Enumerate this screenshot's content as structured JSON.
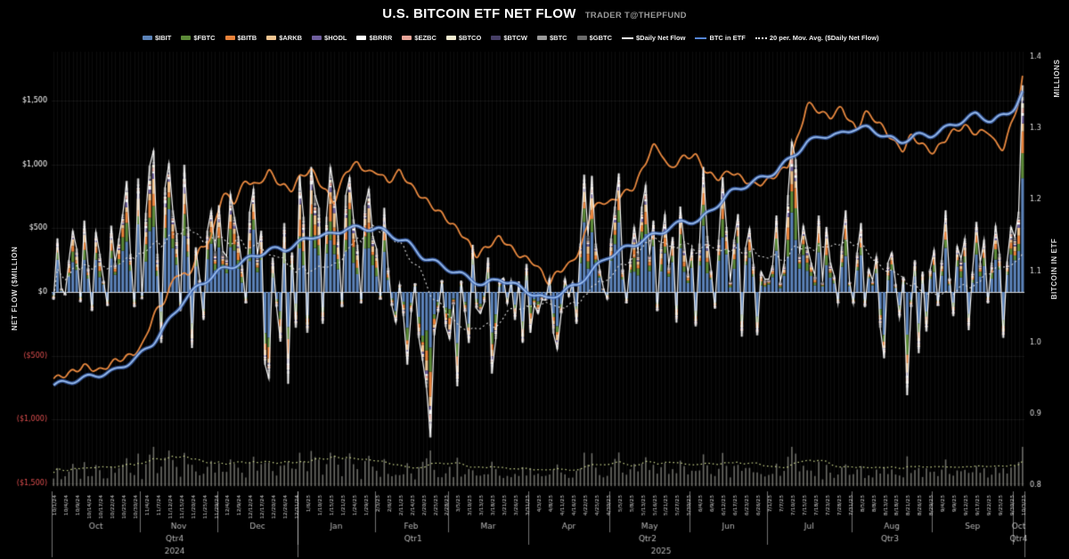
{
  "header": {
    "title": "U.S. BITCOIN ETF NET FLOW",
    "byline": "TRADER T@THEPFUND"
  },
  "axes": {
    "left_title": "NET FLOW ($MILLION",
    "right_title": "BITCOIN IN ETF",
    "right_units": "MILLIONS",
    "left_ticks": [
      {
        "label": "$1,500",
        "value": 1500,
        "color": "#ffffff"
      },
      {
        "label": "$1,000",
        "value": 1000,
        "color": "#ffffff"
      },
      {
        "label": "$500",
        "value": 500,
        "color": "#ffffff"
      },
      {
        "label": "$0",
        "value": 0,
        "color": "#ffffff"
      },
      {
        "label": "($500)",
        "value": -500,
        "color": "#e04f4f"
      },
      {
        "label": "($1,000)",
        "value": -1000,
        "color": "#e04f4f"
      },
      {
        "label": "($1,500)",
        "value": -1500,
        "color": "#e04f4f"
      }
    ],
    "right_ticks": [
      {
        "label": "1.4",
        "value": 1.4
      },
      {
        "label": "1.3",
        "value": 1.3
      },
      {
        "label": "1.2",
        "value": 1.2
      },
      {
        "label": "1.1",
        "value": 1.1
      },
      {
        "label": "1.0",
        "value": 1.0
      },
      {
        "label": "0.9",
        "value": 0.9
      },
      {
        "label": "0.8",
        "value": 0.8
      }
    ]
  },
  "chart_data": {
    "type": "bar",
    "title": "U.S. BITCOIN ETF NET FLOW",
    "xlabel": "",
    "ylabel": "NET FLOW ($MILLION",
    "left_axis_range": [
      -1500,
      1500
    ],
    "right_axis_range": [
      0.8,
      1.4
    ],
    "legend_position": "top",
    "grid": "faint",
    "tick_every": 3,
    "etfs": [
      {
        "ticker": "$IBIT",
        "color": "#5b82b8",
        "weight": 0.52
      },
      {
        "ticker": "$FBTC",
        "color": "#5c8a38",
        "weight": 0.13
      },
      {
        "ticker": "$BITB",
        "color": "#e8823a",
        "weight": 0.09
      },
      {
        "ticker": "$ARKB",
        "color": "#f0c490",
        "weight": 0.08
      },
      {
        "ticker": "$HODL",
        "color": "#6f5f9e",
        "weight": 0.03
      },
      {
        "ticker": "$BRRR",
        "color": "#ffffff",
        "weight": 0.02
      },
      {
        "ticker": "$EZBC",
        "color": "#e8a598",
        "weight": 0.02
      },
      {
        "ticker": "$BTCO",
        "color": "#f0ead0",
        "weight": 0.02
      },
      {
        "ticker": "$BTCW",
        "color": "#473f66",
        "weight": 0.01
      },
      {
        "ticker": "$BTC",
        "color": "#9a9a9a",
        "weight": 0.02
      },
      {
        "ticker": "$GBTC",
        "color": "#6a6a6a",
        "weight": 0.06
      }
    ],
    "line_legend": [
      {
        "label": "$Daily Net Flow",
        "color": "#ffffff",
        "style": "line"
      },
      {
        "label": "BTC in ETF",
        "color": "#5585d6",
        "style": "line"
      },
      {
        "label": "20 per. Mov. Avg. ($Daily Net Flow)",
        "color": "#ffffff",
        "style": "dotted"
      }
    ],
    "months": [
      {
        "label": "Oct",
        "start": 0,
        "count": 23
      },
      {
        "label": "Nov",
        "start": 23,
        "count": 20
      },
      {
        "label": "Dec",
        "start": 43,
        "count": 21
      },
      {
        "label": "Jan",
        "start": 64,
        "count": 20
      },
      {
        "label": "Feb",
        "start": 84,
        "count": 19
      },
      {
        "label": "Mar",
        "start": 103,
        "count": 21
      },
      {
        "label": "Apr",
        "start": 124,
        "count": 21
      },
      {
        "label": "May",
        "start": 145,
        "count": 21
      },
      {
        "label": "Jun",
        "start": 166,
        "count": 20
      },
      {
        "label": "Jul",
        "start": 186,
        "count": 22
      },
      {
        "label": "Aug",
        "start": 208,
        "count": 21
      },
      {
        "label": "Sep",
        "start": 229,
        "count": 21
      },
      {
        "label": "Oct",
        "start": 250,
        "count": 3
      }
    ],
    "quarters": [
      {
        "label": "Qtr4",
        "start": 0,
        "count": 64
      },
      {
        "label": "Qtr1",
        "start": 64,
        "count": 60
      },
      {
        "label": "Qtr2",
        "start": 124,
        "count": 62
      },
      {
        "label": "Qtr3",
        "start": 186,
        "count": 64
      },
      {
        "label": "Qtr4",
        "start": 250,
        "count": 3
      }
    ],
    "years": [
      {
        "label": "2024",
        "start": 0,
        "count": 64
      },
      {
        "label": "2025",
        "start": 64,
        "count": 189
      }
    ],
    "x_dates": [
      "10/1/24",
      "10/2/24",
      "10/3/24",
      "10/4/24",
      "10/7/24",
      "10/8/24",
      "10/9/24",
      "10/10/24",
      "10/11/24",
      "10/14/24",
      "10/15/24",
      "10/16/24",
      "10/17/24",
      "10/18/24",
      "10/21/24",
      "10/22/24",
      "10/23/24",
      "10/24/24",
      "10/25/24",
      "10/28/24",
      "10/29/24",
      "10/30/24",
      "10/31/24",
      "11/1/24",
      "11/4/24",
      "11/5/24",
      "11/6/24",
      "11/7/24",
      "11/8/24",
      "11/11/24",
      "11/12/24",
      "11/13/24",
      "11/14/24",
      "11/15/24",
      "11/18/24",
      "11/19/24",
      "11/20/24",
      "11/21/24",
      "11/22/24",
      "11/25/24",
      "11/26/24",
      "11/27/24",
      "11/29/24",
      "12/2/24",
      "12/3/24",
      "12/4/24",
      "12/5/24",
      "12/6/24",
      "12/9/24",
      "12/10/24",
      "12/11/24",
      "12/12/24",
      "12/13/24",
      "12/16/24",
      "12/17/24",
      "12/18/24",
      "12/19/24",
      "12/20/24",
      "12/23/24",
      "12/24/24",
      "12/26/24",
      "12/27/24",
      "12/30/24",
      "12/31/24",
      "1/2/25",
      "1/3/25",
      "1/6/25",
      "1/7/25",
      "1/8/25",
      "1/10/25",
      "1/13/25",
      "1/14/25",
      "1/15/25",
      "1/16/25",
      "1/17/25",
      "1/21/25",
      "1/22/25",
      "1/23/25",
      "1/24/25",
      "1/27/25",
      "1/28/25",
      "1/29/25",
      "1/30/25",
      "1/31/25",
      "2/3/25",
      "2/4/25",
      "2/5/25",
      "2/6/25",
      "2/7/25",
      "2/10/25",
      "2/11/25",
      "2/12/25",
      "2/13/25",
      "2/14/25",
      "2/18/25",
      "2/19/25",
      "2/20/25",
      "2/21/25",
      "2/24/25",
      "2/25/25",
      "2/26/25",
      "2/27/25",
      "2/28/25",
      "3/3/25",
      "3/4/25",
      "3/5/25",
      "3/6/25",
      "3/7/25",
      "3/10/25",
      "3/11/25",
      "3/12/25",
      "3/13/25",
      "3/14/25",
      "3/17/25",
      "3/18/25",
      "3/19/25",
      "3/20/25",
      "3/21/25",
      "3/24/25",
      "3/25/25",
      "3/26/25",
      "3/27/25",
      "3/28/25",
      "3/31/25",
      "4/1/25",
      "4/2/25",
      "4/3/25",
      "4/4/25",
      "4/7/25",
      "4/8/25",
      "4/9/25",
      "4/10/25",
      "4/11/25",
      "4/14/25",
      "4/15/25",
      "4/16/25",
      "4/17/25",
      "4/21/25",
      "4/22/25",
      "4/23/25",
      "4/24/25",
      "4/25/25",
      "4/28/25",
      "4/29/25",
      "4/30/25",
      "5/1/25",
      "5/2/25",
      "5/5/25",
      "5/6/25",
      "5/7/25",
      "5/8/25",
      "5/9/25",
      "5/12/25",
      "5/13/25",
      "5/14/25",
      "5/15/25",
      "5/16/25",
      "5/19/25",
      "5/20/25",
      "5/21/25",
      "5/22/25",
      "5/23/25",
      "5/27/25",
      "5/28/25",
      "5/29/25",
      "5/30/25",
      "6/2/25",
      "6/3/25",
      "6/4/25",
      "6/5/25",
      "6/6/25",
      "6/9/25",
      "6/10/25",
      "6/11/25",
      "6/12/25",
      "6/13/25",
      "6/16/25",
      "6/17/25",
      "6/18/25",
      "6/20/25",
      "6/23/25",
      "6/24/25",
      "6/25/25",
      "6/26/25",
      "6/27/25",
      "6/30/25",
      "7/1/25",
      "7/2/25",
      "7/3/25",
      "7/7/25",
      "7/8/25",
      "7/9/25",
      "7/10/25",
      "7/11/25",
      "7/14/25",
      "7/15/25",
      "7/16/25",
      "7/17/25",
      "7/18/25",
      "7/21/25",
      "7/22/25",
      "7/23/25",
      "7/24/25",
      "7/25/25",
      "7/28/25",
      "7/29/25",
      "7/30/25",
      "7/31/25",
      "8/1/25",
      "8/4/25",
      "8/5/25",
      "8/6/25",
      "8/7/25",
      "8/8/25",
      "8/11/25",
      "8/12/25",
      "8/13/25",
      "8/14/25",
      "8/15/25",
      "8/18/25",
      "8/19/25",
      "8/20/25",
      "8/21/25",
      "8/22/25",
      "8/25/25",
      "8/26/25",
      "8/27/25",
      "8/28/25",
      "8/29/25",
      "9/2/25",
      "9/3/25",
      "9/4/25",
      "9/5/25",
      "9/8/25",
      "9/9/25",
      "9/10/25",
      "9/11/25",
      "9/12/25",
      "9/15/25",
      "9/16/25",
      "9/17/25",
      "9/18/25",
      "9/19/25",
      "9/22/25",
      "9/23/25",
      "9/24/25",
      "9/25/25",
      "9/26/25",
      "9/29/25",
      "9/30/25",
      "10/1/25",
      "10/2/25",
      "10/3/25"
    ],
    "daily_net_flow": [
      -60,
      420,
      30,
      -20,
      250,
      480,
      340,
      -80,
      560,
      190,
      -150,
      470,
      300,
      90,
      -110,
      520,
      230,
      420,
      610,
      870,
      300,
      -120,
      890,
      -55,
      620,
      990,
      1110,
      300,
      -400,
      820,
      1010,
      640,
      450,
      -150,
      998,
      510,
      -440,
      350,
      100,
      -220,
      480,
      640,
      320,
      680,
      320,
      280,
      770,
      590,
      440,
      210,
      -90,
      630,
      810,
      290,
      480,
      -570,
      -680,
      270,
      -120,
      -390,
      540,
      -720,
      310,
      -280,
      910,
      590,
      -320,
      980,
      760,
      660,
      -250,
      590,
      980,
      800,
      450,
      -120,
      760,
      900,
      570,
      370,
      -90,
      680,
      810,
      440,
      340,
      -60,
      660,
      190,
      -110,
      -240,
      60,
      -190,
      -570,
      -160,
      70,
      -360,
      -540,
      -750,
      -1140,
      -340,
      -160,
      94,
      -275,
      -370,
      -100,
      -740,
      90,
      -160,
      -400,
      370,
      -130,
      -170,
      -84,
      270,
      -640,
      -370,
      83,
      110,
      -93,
      89,
      -220,
      84,
      -400,
      220,
      -320,
      -100,
      -170,
      -60,
      -64,
      110,
      -326,
      -450,
      -170,
      106,
      -35,
      76,
      -250,
      380,
      920,
      440,
      910,
      380,
      180,
      30,
      -56,
      420,
      670,
      930,
      180,
      -90,
      260,
      510,
      320,
      670,
      840,
      290,
      560,
      -150,
      380,
      610,
      210,
      430,
      -240,
      670,
      380,
      150,
      340,
      -270,
      380,
      980,
      440,
      170,
      -130,
      410,
      900,
      510,
      86,
      410,
      610,
      -350,
      350,
      500,
      220,
      -340,
      160,
      100,
      100,
      210,
      600,
      80,
      220,
      760,
      1180,
      1040,
      300,
      520,
      360,
      230,
      130,
      600,
      80,
      510,
      230,
      130,
      -90,
      360,
      640,
      80,
      -90,
      310,
      540,
      -120,
      180,
      90,
      280,
      -280,
      -520,
      230,
      310,
      65,
      -200,
      120,
      -810,
      -120,
      250,
      -480,
      160,
      -310,
      179,
      330,
      -110,
      250,
      640,
      110,
      -190,
      360,
      260,
      420,
      -300,
      160,
      550,
      230,
      410,
      -90,
      230,
      520,
      300,
      -360,
      240,
      510,
      430,
      630,
      1620
    ],
    "btc_in_etf_keyframes": [
      [
        0,
        0.94
      ],
      [
        8,
        0.95
      ],
      [
        16,
        0.96
      ],
      [
        22,
        0.98
      ],
      [
        26,
        1.0
      ],
      [
        30,
        1.03
      ],
      [
        34,
        1.06
      ],
      [
        38,
        1.08
      ],
      [
        43,
        1.1
      ],
      [
        48,
        1.11
      ],
      [
        52,
        1.12
      ],
      [
        56,
        1.13
      ],
      [
        60,
        1.13
      ],
      [
        64,
        1.14
      ],
      [
        68,
        1.15
      ],
      [
        72,
        1.15
      ],
      [
        76,
        1.16
      ],
      [
        80,
        1.16
      ],
      [
        84,
        1.16
      ],
      [
        88,
        1.15
      ],
      [
        92,
        1.14
      ],
      [
        96,
        1.12
      ],
      [
        100,
        1.11
      ],
      [
        104,
        1.1
      ],
      [
        108,
        1.09
      ],
      [
        112,
        1.08
      ],
      [
        116,
        1.09
      ],
      [
        120,
        1.08
      ],
      [
        124,
        1.07
      ],
      [
        128,
        1.06
      ],
      [
        132,
        1.07
      ],
      [
        136,
        1.08
      ],
      [
        140,
        1.1
      ],
      [
        144,
        1.12
      ],
      [
        148,
        1.13
      ],
      [
        152,
        1.14
      ],
      [
        156,
        1.15
      ],
      [
        160,
        1.16
      ],
      [
        164,
        1.17
      ],
      [
        168,
        1.17
      ],
      [
        172,
        1.19
      ],
      [
        176,
        1.21
      ],
      [
        180,
        1.22
      ],
      [
        184,
        1.23
      ],
      [
        188,
        1.24
      ],
      [
        192,
        1.26
      ],
      [
        196,
        1.28
      ],
      [
        200,
        1.29
      ],
      [
        204,
        1.29
      ],
      [
        208,
        1.3
      ],
      [
        212,
        1.3
      ],
      [
        216,
        1.29
      ],
      [
        220,
        1.28
      ],
      [
        224,
        1.29
      ],
      [
        228,
        1.29
      ],
      [
        232,
        1.3
      ],
      [
        236,
        1.31
      ],
      [
        240,
        1.32
      ],
      [
        244,
        1.31
      ],
      [
        248,
        1.32
      ],
      [
        250,
        1.33
      ],
      [
        252,
        1.35
      ]
    ],
    "orange_line_keyframes": [
      [
        0,
        -680
      ],
      [
        4,
        -640
      ],
      [
        8,
        -580
      ],
      [
        12,
        -620
      ],
      [
        16,
        -540
      ],
      [
        20,
        -500
      ],
      [
        23,
        -430
      ],
      [
        26,
        -180
      ],
      [
        29,
        -60
      ],
      [
        32,
        150
      ],
      [
        35,
        120
      ],
      [
        38,
        330
      ],
      [
        41,
        420
      ],
      [
        44,
        780
      ],
      [
        47,
        700
      ],
      [
        50,
        880
      ],
      [
        53,
        830
      ],
      [
        56,
        950
      ],
      [
        59,
        840
      ],
      [
        62,
        800
      ],
      [
        64,
        900
      ],
      [
        67,
        960
      ],
      [
        70,
        820
      ],
      [
        73,
        700
      ],
      [
        76,
        950
      ],
      [
        79,
        1010
      ],
      [
        82,
        930
      ],
      [
        84,
        950
      ],
      [
        87,
        860
      ],
      [
        90,
        950
      ],
      [
        93,
        830
      ],
      [
        96,
        740
      ],
      [
        99,
        660
      ],
      [
        102,
        580
      ],
      [
        104,
        520
      ],
      [
        107,
        430
      ],
      [
        110,
        280
      ],
      [
        113,
        360
      ],
      [
        116,
        430
      ],
      [
        118,
        380
      ],
      [
        120,
        310
      ],
      [
        123,
        260
      ],
      [
        125,
        230
      ],
      [
        127,
        150
      ],
      [
        129,
        60
      ],
      [
        131,
        160
      ],
      [
        134,
        210
      ],
      [
        137,
        330
      ],
      [
        140,
        650
      ],
      [
        143,
        710
      ],
      [
        145,
        700
      ],
      [
        148,
        770
      ],
      [
        151,
        820
      ],
      [
        154,
        1020
      ],
      [
        156,
        1150
      ],
      [
        158,
        1100
      ],
      [
        160,
        960
      ],
      [
        162,
        1010
      ],
      [
        164,
        1060
      ],
      [
        167,
        1070
      ],
      [
        170,
        930
      ],
      [
        173,
        890
      ],
      [
        176,
        950
      ],
      [
        179,
        890
      ],
      [
        182,
        840
      ],
      [
        185,
        860
      ],
      [
        188,
        920
      ],
      [
        191,
        990
      ],
      [
        194,
        1250
      ],
      [
        196,
        1480
      ],
      [
        198,
        1440
      ],
      [
        200,
        1400
      ],
      [
        202,
        1370
      ],
      [
        205,
        1450
      ],
      [
        207,
        1340
      ],
      [
        209,
        1270
      ],
      [
        211,
        1410
      ],
      [
        213,
        1370
      ],
      [
        216,
        1280
      ],
      [
        219,
        1160
      ],
      [
        221,
        1110
      ],
      [
        223,
        1230
      ],
      [
        226,
        1150
      ],
      [
        229,
        1090
      ],
      [
        231,
        1170
      ],
      [
        234,
        1260
      ],
      [
        237,
        1300
      ],
      [
        240,
        1240
      ],
      [
        243,
        1270
      ],
      [
        245,
        1160
      ],
      [
        247,
        1120
      ],
      [
        249,
        1310
      ],
      [
        251,
        1490
      ],
      [
        252,
        1670
      ]
    ],
    "moving_average_period": 20
  }
}
